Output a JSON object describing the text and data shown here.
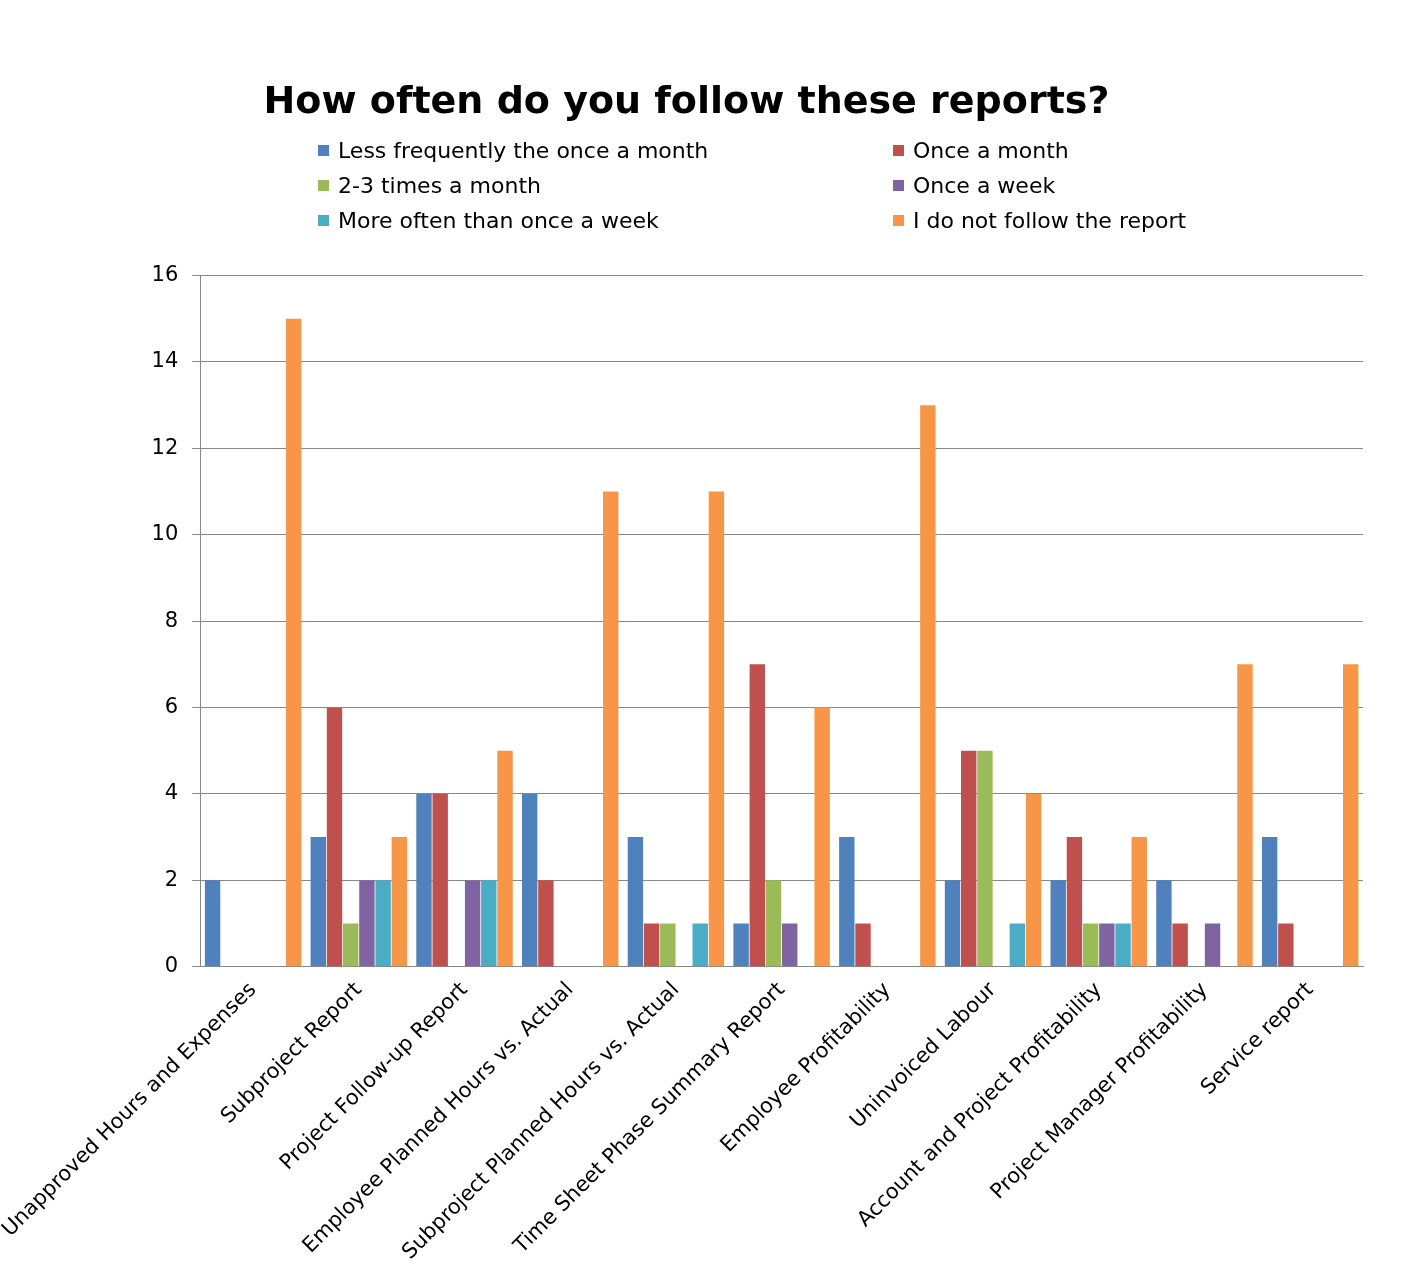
{
  "chart_data": {
    "type": "bar",
    "title": "How often do you follow these reports?",
    "categories": [
      "Unapproved Hours and Expenses",
      "Subproject Report",
      "Project Follow-up Report",
      "Employee Planned Hours vs. Actual",
      "Subproject Planned Hours vs. Actual",
      "Time Sheet Phase Summary Report",
      "Employee Profitability",
      "Uninvoiced Labour",
      "Account and Project Profitability",
      "Project Manager Profitability",
      "Service report"
    ],
    "series": [
      {
        "name": "Less frequently the once a month",
        "color": "#4f81bd",
        "values": [
          2,
          3,
          4,
          4,
          3,
          1,
          3,
          2,
          2,
          2,
          3
        ]
      },
      {
        "name": "Once a month",
        "color": "#c0504d",
        "values": [
          0,
          6,
          4,
          2,
          1,
          7,
          1,
          5,
          3,
          1,
          1
        ]
      },
      {
        "name": "2-3 times a month",
        "color": "#9bbb59",
        "values": [
          0,
          1,
          0,
          0,
          1,
          2,
          0,
          5,
          1,
          0,
          0
        ]
      },
      {
        "name": "Once a week",
        "color": "#8064a2",
        "values": [
          0,
          2,
          2,
          0,
          0,
          1,
          0,
          0,
          1,
          1,
          0
        ]
      },
      {
        "name": "More often than once a week",
        "color": "#4bacc6",
        "values": [
          0,
          2,
          2,
          0,
          1,
          0,
          0,
          1,
          1,
          0,
          0
        ]
      },
      {
        "name": "I do not follow the report",
        "color": "#f79646",
        "values": [
          15,
          3,
          5,
          11,
          11,
          6,
          13,
          4,
          3,
          7,
          7
        ]
      }
    ],
    "ylim": [
      0,
      16
    ],
    "yticks": [
      0,
      2,
      4,
      6,
      8,
      10,
      12,
      14,
      16
    ],
    "grid": "y",
    "legend": "top"
  }
}
